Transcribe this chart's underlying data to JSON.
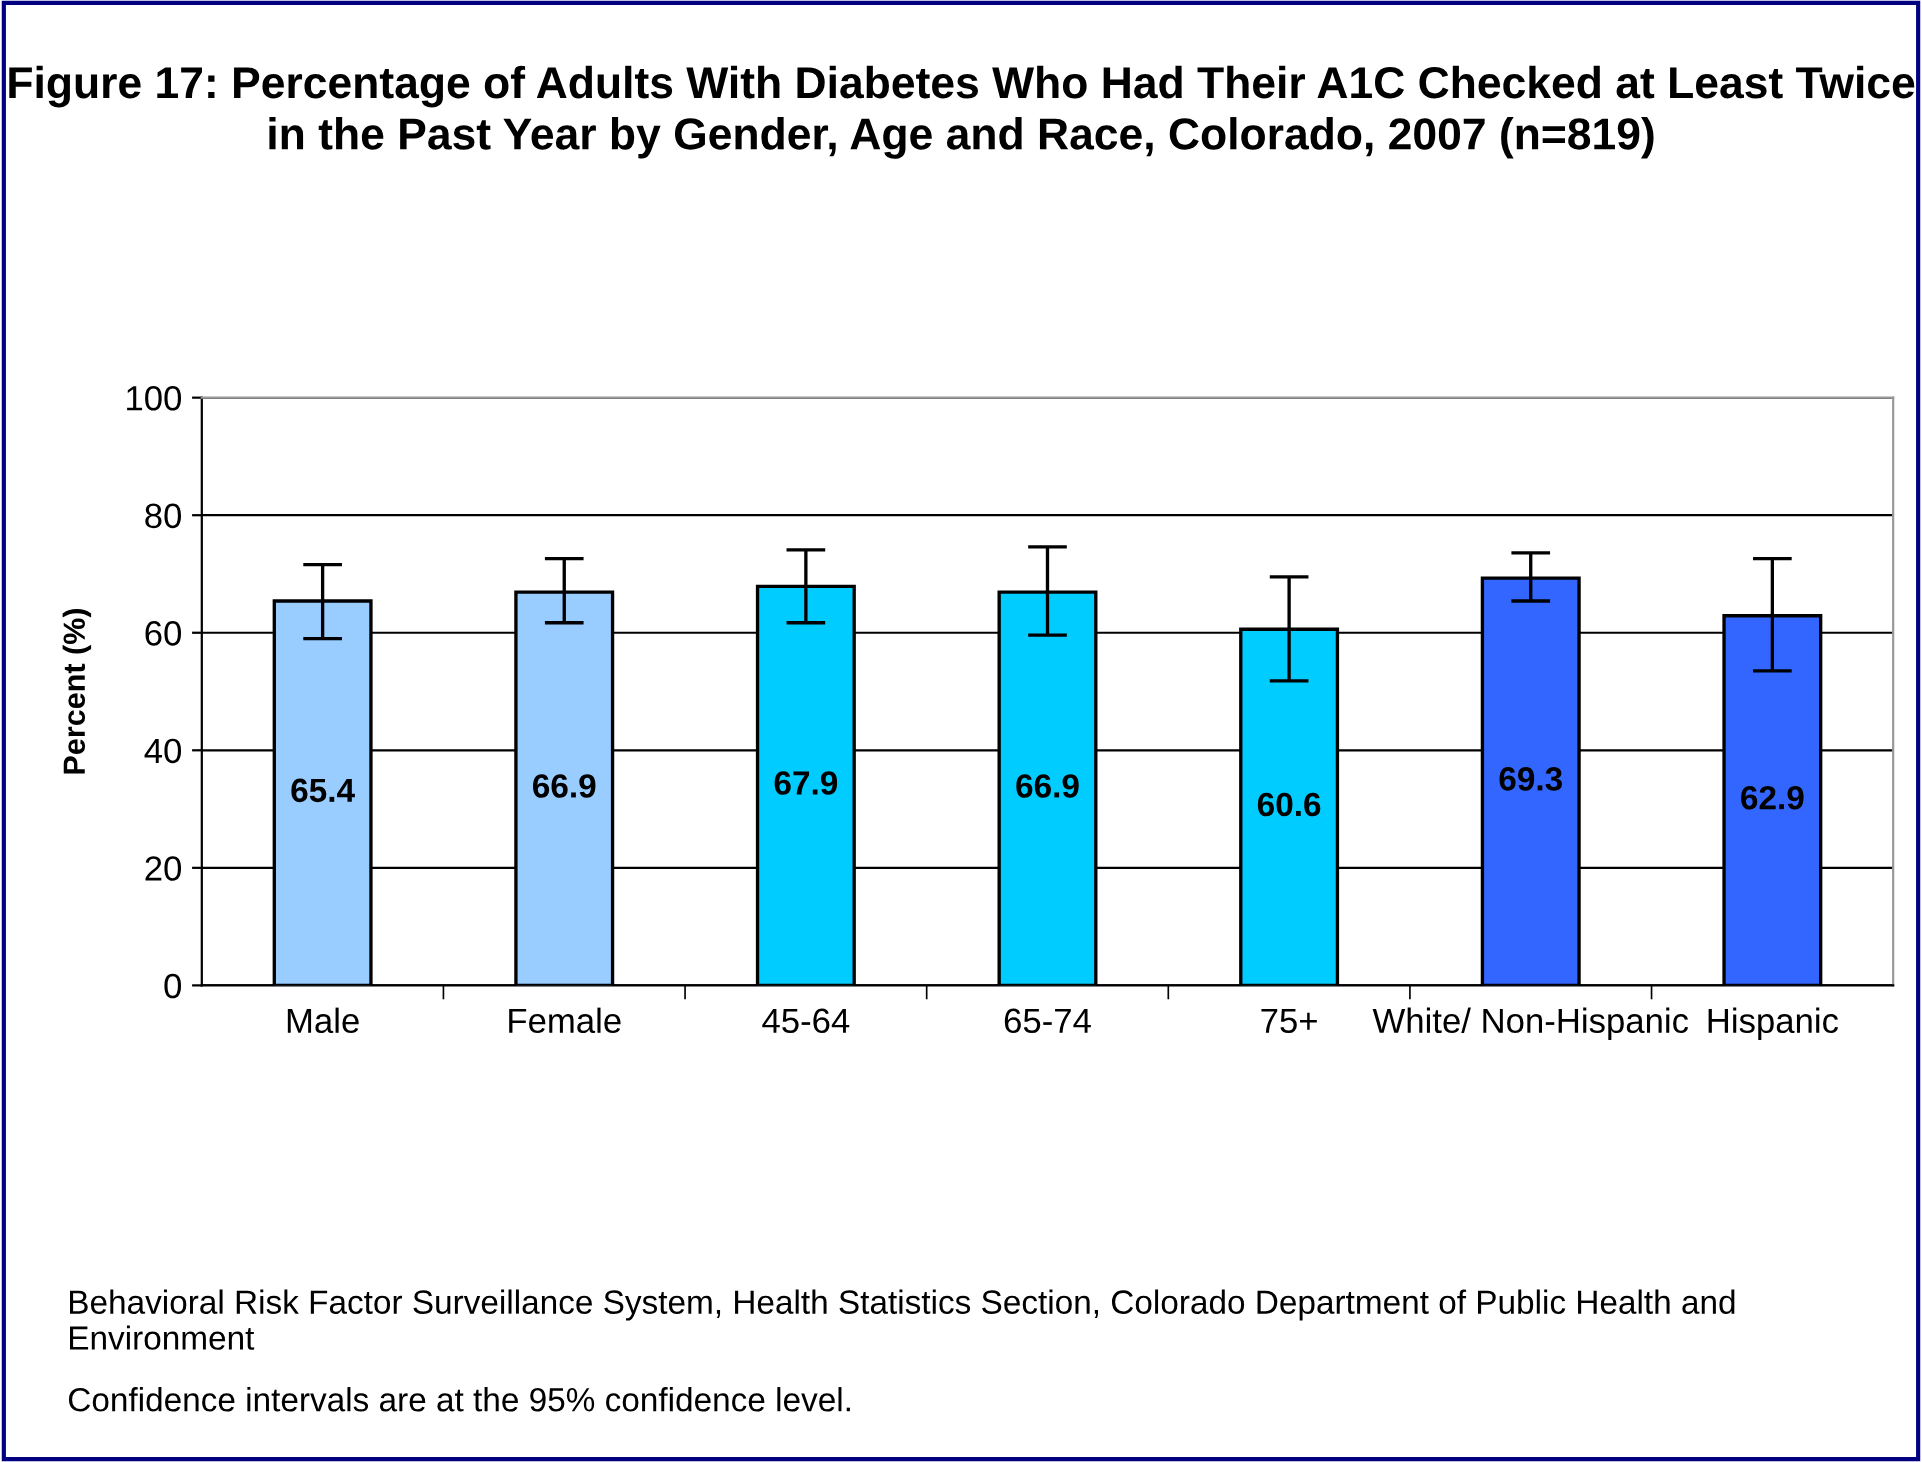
{
  "chart_data": {
    "type": "bar",
    "title": "Figure 17: Percentage of Adults With Diabetes Who Had Their A1C Checked at Least Twice in the Past Year by Gender, Age and Race, Colorado, 2007 (n=819)",
    "ylabel": "Percent (%)",
    "categories": [
      "Male",
      "Female",
      "45-64",
      "65-74",
      "75+",
      "White/ Non-Hispanic",
      "Hispanic"
    ],
    "values": [
      65.4,
      66.9,
      67.9,
      66.9,
      60.6,
      69.3,
      62.9
    ],
    "colors": [
      "#99ccff",
      "#99ccff",
      "#00ccff",
      "#00ccff",
      "#00ccff",
      "#3366ff",
      "#3366ff"
    ],
    "errors": [
      [
        59.0,
        71.6
      ],
      [
        61.7,
        72.6
      ],
      [
        61.7,
        74.1
      ],
      [
        59.6,
        74.6
      ],
      [
        51.8,
        69.5
      ],
      [
        65.4,
        73.6
      ],
      [
        53.5,
        72.6
      ]
    ],
    "data_labels": true,
    "ylim": [
      0,
      100
    ],
    "yticks": [
      0,
      20,
      40,
      60,
      80,
      100
    ],
    "grid": "y",
    "legend": false,
    "annotations": [
      "Behavioral Risk Factor Surveillance System, Health Statistics Section, Colorado Department of Public Health and Environment",
      "Confidence intervals are at the 95% confidence level."
    ]
  }
}
